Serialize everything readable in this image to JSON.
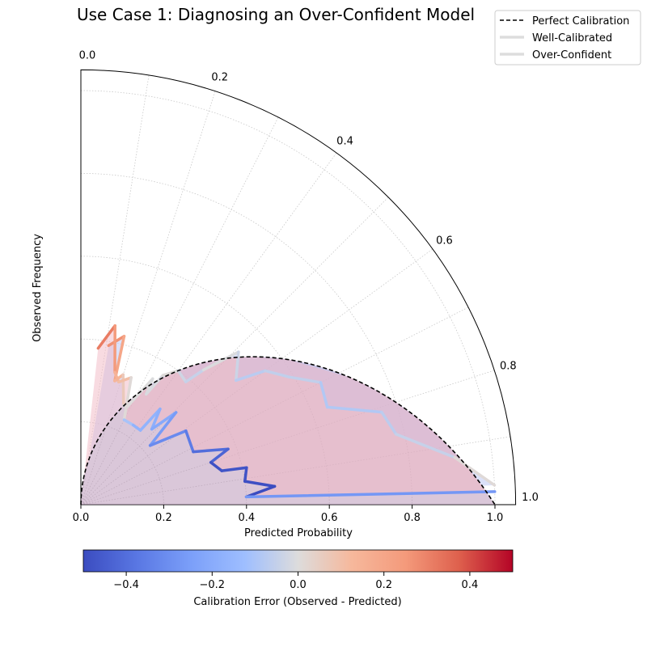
{
  "chart_data": {
    "type": "line",
    "projection": "quarter-polar (angle = predicted probability, radius = observed frequency)",
    "title": "Use Case 1: Diagnosing an Over-Confident Model",
    "xlabel": "Predicted Probability",
    "ylabel": "Observed Frequency",
    "x_ticks": [
      "0.0",
      "0.2",
      "0.4",
      "0.6",
      "0.8",
      "1.0"
    ],
    "angular_ticks": [
      "0.0",
      "0.2",
      "0.4",
      "0.6",
      "0.8",
      "1.0"
    ],
    "xlim": [
      0,
      1.05
    ],
    "rlim": [
      0,
      1.05
    ],
    "grid": true,
    "legend": {
      "position": "top-right",
      "entries": [
        {
          "label": "Perfect Calibration",
          "style": "dashed",
          "color": "#000000"
        },
        {
          "label": "Well-Calibrated",
          "style": "solid",
          "color": "#dddddd"
        },
        {
          "label": "Over-Confident",
          "style": "solid",
          "color": "#dddddd"
        }
      ]
    },
    "colorbar": {
      "label": "Calibration Error (Observed - Predicted)",
      "min": -0.5,
      "max": 0.5,
      "ticks": [
        "−0.4",
        "−0.2",
        "0.0",
        "0.2",
        "0.4"
      ],
      "colormap": "coolwarm"
    },
    "series": [
      {
        "name": "Well-Calibrated",
        "points": [
          [
            0.11,
            0.39
          ],
          [
            0.16,
            0.42
          ],
          [
            0.17,
            0.31
          ],
          [
            0.2,
            0.33
          ],
          [
            0.26,
            0.26
          ],
          [
            0.28,
            0.26
          ],
          [
            0.33,
            0.35
          ],
          [
            0.34,
            0.31
          ],
          [
            0.36,
            0.37
          ],
          [
            0.4,
            0.4
          ],
          [
            0.45,
            0.39
          ],
          [
            0.47,
            0.44
          ],
          [
            0.51,
            0.53
          ],
          [
            0.57,
            0.48
          ],
          [
            0.6,
            0.55
          ],
          [
            0.65,
            0.59
          ],
          [
            0.7,
            0.65
          ],
          [
            0.76,
            0.64
          ],
          [
            0.81,
            0.76
          ],
          [
            0.86,
            0.78
          ],
          [
            0.92,
            0.91
          ],
          [
            0.97,
            1.0
          ]
        ]
      },
      {
        "name": "Over-Confident",
        "points": [
          [
            0.07,
            0.38
          ],
          [
            0.12,
            0.44
          ],
          [
            0.16,
            0.33
          ],
          [
            0.19,
            0.31
          ],
          [
            0.24,
            0.33
          ],
          [
            0.3,
            0.23
          ],
          [
            0.37,
            0.23
          ],
          [
            0.43,
            0.23
          ],
          [
            0.44,
            0.3
          ],
          [
            0.48,
            0.25
          ],
          [
            0.51,
            0.32
          ],
          [
            0.55,
            0.22
          ],
          [
            0.61,
            0.31
          ],
          [
            0.72,
            0.3
          ],
          [
            0.77,
            0.38
          ],
          [
            0.8,
            0.33
          ],
          [
            0.85,
            0.35
          ],
          [
            0.86,
            0.41
          ],
          [
            0.91,
            0.4
          ],
          [
            0.94,
            0.47
          ],
          [
            0.97,
            0.4
          ],
          [
            0.98,
            1.0
          ]
        ]
      }
    ],
    "perfect_calibration": "r = x for x in [0, 1]"
  }
}
